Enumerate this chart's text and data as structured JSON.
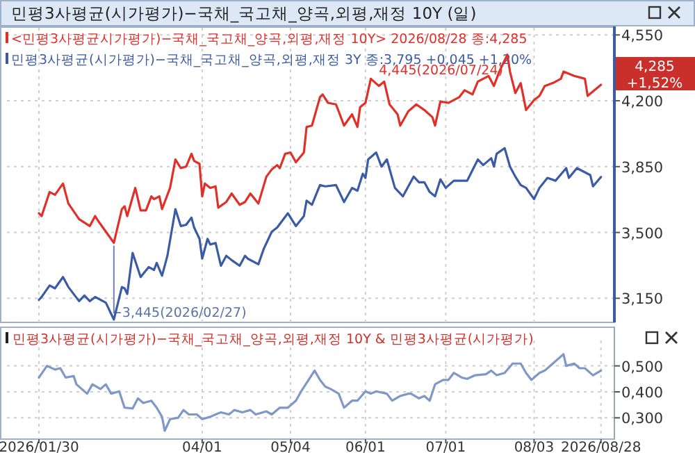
{
  "chart_data": [
    {
      "type": "line",
      "title": "민평3사평균(시가평가)−국채_국고채_양곡,외평,재정 10Y (일)",
      "legend": "top left",
      "grid": true,
      "tick_labels": "y",
      "marker": "none",
      "xlim": [
        "2026-01-30",
        "2026-09-02"
      ],
      "xticks": [
        {
          "value": "2026-01-30",
          "label": null
        },
        {
          "value": "2026-04-01",
          "label": null
        },
        {
          "value": "2026-05-04",
          "label": null
        },
        {
          "value": "2026-06-01",
          "label": null
        },
        {
          "value": "2026-07-01",
          "label": null
        },
        {
          "value": "2026-08-03",
          "label": null
        }
      ],
      "ylim": [
        3.022,
        4.588
      ],
      "yticks": [
        {
          "value": 3.15,
          "label": "3,150"
        },
        {
          "value": 3.5,
          "label": "3,500"
        },
        {
          "value": 3.85,
          "label": "3,850"
        },
        {
          "value": 4.2,
          "label": "4,200"
        },
        {
          "value": 4.55,
          "label": "4,550"
        }
      ],
      "annotations": [
        {
          "text": "3,445(2026/02/27)",
          "x": "2026-02-27",
          "y": 3.445
        },
        {
          "text": "4,445(2026/07/24)",
          "x": "2026-07-24",
          "y": 4.445
        },
        "4,285",
        "+1,52%"
      ],
      "series": [
        {
          "name": "<민평3사평균시가평가)−국채_국고채_양곡,외평,재정 10Y> 2026/08/28 종:4,285",
          "color": "#e0302a",
          "x": [
            "2026-01-30",
            "2026-01-31",
            "2026-02-03",
            "2026-02-05",
            "2026-02-08",
            "2026-02-10",
            "2026-02-14",
            "2026-02-18",
            "2026-02-20",
            "2026-02-21",
            "2026-02-27",
            "2026-03-02",
            "2026-03-03",
            "2026-03-04",
            "2026-03-07",
            "2026-03-09",
            "2026-03-11",
            "2026-03-13",
            "2026-03-14",
            "2026-03-16",
            "2026-03-17",
            "2026-03-20",
            "2026-03-22",
            "2026-03-24",
            "2026-03-26",
            "2026-03-28",
            "2026-03-29",
            "2026-03-31",
            "2026-04-01",
            "2026-04-02",
            "2026-04-04",
            "2026-04-06",
            "2026-04-07",
            "2026-04-10",
            "2026-04-12",
            "2026-04-15",
            "2026-04-17",
            "2026-04-19",
            "2026-04-22",
            "2026-04-25",
            "2026-04-27",
            "2026-04-29",
            "2026-04-30",
            "2026-05-02",
            "2026-05-04",
            "2026-05-06",
            "2026-05-09",
            "2026-05-10",
            "2026-05-12",
            "2026-05-15",
            "2026-05-16",
            "2026-05-18",
            "2026-05-21",
            "2026-05-24",
            "2026-05-27",
            "2026-05-29",
            "2026-05-30",
            "2026-06-01",
            "2026-06-03",
            "2026-06-06",
            "2026-06-08",
            "2026-06-10",
            "2026-06-13",
            "2026-06-14",
            "2026-06-17",
            "2026-06-20",
            "2026-06-23",
            "2026-06-26",
            "2026-06-27",
            "2026-06-29",
            "2026-07-02",
            "2026-07-06",
            "2026-07-08",
            "2026-07-11",
            "2026-07-13",
            "2026-07-17",
            "2026-07-19",
            "2026-07-21",
            "2026-07-24",
            "2026-07-25",
            "2026-07-27",
            "2026-07-29",
            "2026-07-31",
            "2026-08-03",
            "2026-08-05",
            "2026-08-07",
            "2026-08-10",
            "2026-08-13",
            "2026-08-14",
            "2026-08-18",
            "2026-08-22",
            "2026-08-23",
            "2026-08-28"
          ],
          "values": [
            3.602,
            3.587,
            3.715,
            3.7,
            3.76,
            3.654,
            3.571,
            3.534,
            3.587,
            3.564,
            3.445,
            3.624,
            3.639,
            3.587,
            3.737,
            3.617,
            3.617,
            3.692,
            3.677,
            3.692,
            3.624,
            3.737,
            3.888,
            3.842,
            3.85,
            3.918,
            3.88,
            3.865,
            3.692,
            3.76,
            3.737,
            3.745,
            3.632,
            3.662,
            3.707,
            3.647,
            3.662,
            3.707,
            3.654,
            3.797,
            3.835,
            3.858,
            3.842,
            3.918,
            3.925,
            3.873,
            3.925,
            4.061,
            4.068,
            4.219,
            4.234,
            4.189,
            4.181,
            4.068,
            4.128,
            4.061,
            4.166,
            4.189,
            4.317,
            4.279,
            4.302,
            4.181,
            4.128,
            4.068,
            4.144,
            4.181,
            4.151,
            4.113,
            4.068,
            4.196,
            4.189,
            4.219,
            4.256,
            4.234,
            4.302,
            4.332,
            4.279,
            4.355,
            4.445,
            4.355,
            4.241,
            4.294,
            4.151,
            4.204,
            4.226,
            4.279,
            4.294,
            4.317,
            4.355,
            4.332,
            4.317,
            4.226,
            4.285
          ]
        },
        {
          "name": "민평3사평균(시가평가)−국채_국고채_양곡,외평,재정 3Y 종:3,795 +0,045 +1,20%",
          "color": "#3b5ba5",
          "x": [
            "2026-01-30",
            "2026-01-31",
            "2026-02-03",
            "2026-02-05",
            "2026-02-08",
            "2026-02-10",
            "2026-02-14",
            "2026-02-16",
            "2026-02-18",
            "2026-02-20",
            "2026-02-24",
            "2026-02-27",
            "2026-03-02",
            "2026-03-03",
            "2026-03-04",
            "2026-03-06",
            "2026-03-09",
            "2026-03-12",
            "2026-03-14",
            "2026-03-15",
            "2026-03-17",
            "2026-03-19",
            "2026-03-22",
            "2026-03-24",
            "2026-03-26",
            "2026-03-28",
            "2026-03-29",
            "2026-03-31",
            "2026-04-01",
            "2026-04-03",
            "2026-04-04",
            "2026-04-06",
            "2026-04-08",
            "2026-04-10",
            "2026-04-12",
            "2026-04-15",
            "2026-04-17",
            "2026-04-18",
            "2026-04-22",
            "2026-04-24",
            "2026-04-27",
            "2026-04-29",
            "2026-05-01",
            "2026-05-03",
            "2026-05-06",
            "2026-05-09",
            "2026-05-10",
            "2026-05-12",
            "2026-05-15",
            "2026-05-17",
            "2026-05-21",
            "2026-05-24",
            "2026-05-27",
            "2026-05-29",
            "2026-05-31",
            "2026-06-01",
            "2026-06-02",
            "2026-06-05",
            "2026-06-07",
            "2026-06-09",
            "2026-06-12",
            "2026-06-15",
            "2026-06-19",
            "2026-06-21",
            "2026-06-23",
            "2026-06-25",
            "2026-06-27",
            "2026-06-29",
            "2026-07-01",
            "2026-07-04",
            "2026-07-09",
            "2026-07-13",
            "2026-07-15",
            "2026-07-18",
            "2026-07-19",
            "2026-07-20",
            "2026-07-23",
            "2026-07-25",
            "2026-07-27",
            "2026-07-29",
            "2026-07-31",
            "2026-08-03",
            "2026-08-05",
            "2026-08-08",
            "2026-08-11",
            "2026-08-15",
            "2026-08-16",
            "2026-08-19",
            "2026-08-24",
            "2026-08-25",
            "2026-08-28"
          ],
          "values": [
            3.142,
            3.157,
            3.218,
            3.203,
            3.263,
            3.21,
            3.135,
            3.165,
            3.135,
            3.157,
            3.127,
            3.037,
            3.21,
            3.203,
            3.173,
            3.391,
            3.263,
            3.316,
            3.301,
            3.338,
            3.27,
            3.376,
            3.624,
            3.534,
            3.541,
            3.579,
            3.526,
            3.466,
            3.361,
            3.466,
            3.436,
            3.444,
            3.323,
            3.376,
            3.353,
            3.323,
            3.376,
            3.361,
            3.331,
            3.413,
            3.504,
            3.526,
            3.564,
            3.602,
            3.534,
            3.587,
            3.669,
            3.647,
            3.752,
            3.745,
            3.752,
            3.662,
            3.737,
            3.722,
            3.812,
            3.79,
            3.888,
            3.925,
            3.85,
            3.888,
            3.737,
            3.692,
            3.797,
            3.767,
            3.767,
            3.715,
            3.692,
            3.782,
            3.737,
            3.775,
            3.775,
            3.888,
            3.858,
            3.895,
            3.85,
            3.918,
            3.948,
            3.85,
            3.797,
            3.752,
            3.737,
            3.677,
            3.737,
            3.79,
            3.775,
            3.842,
            3.79,
            3.842,
            3.805,
            3.745,
            3.795
          ]
        }
      ]
    },
    {
      "type": "line",
      "title": "민평3사평균(시가평가)−국채_국고채_양곡,외평,재정 10Y & 민평3사평균(시가평가)",
      "grid": true,
      "marker": "none",
      "xlim": [
        "2026-01-30",
        "2026-09-02"
      ],
      "xticks": [
        {
          "value": "2026-01-30",
          "label": "2026/01/30"
        },
        {
          "value": "2026-04-01",
          "label": "04/01"
        },
        {
          "value": "2026-05-04",
          "label": "05/04"
        },
        {
          "value": "2026-06-01",
          "label": "06/01"
        },
        {
          "value": "2026-07-01",
          "label": "07/01"
        },
        {
          "value": "2026-08-03",
          "label": "08/03"
        },
        {
          "value": "2026-08-28",
          "label": "2026/08/28"
        }
      ],
      "ylim": [
        0.218,
        0.598
      ],
      "yticks": [
        {
          "value": 0.3,
          "label": "0,300"
        },
        {
          "value": 0.4,
          "label": "0,400"
        },
        {
          "value": 0.5,
          "label": "0,500"
        }
      ],
      "series": [
        {
          "color": "#7f98c8",
          "x": [
            "2026-01-30",
            "2026-02-02",
            "2026-02-05",
            "2026-02-07",
            "2026-02-09",
            "2026-02-12",
            "2026-02-13",
            "2026-02-17",
            "2026-02-19",
            "2026-02-22",
            "2026-02-24",
            "2026-02-26",
            "2026-03-01",
            "2026-03-03",
            "2026-03-06",
            "2026-03-08",
            "2026-03-10",
            "2026-03-13",
            "2026-03-15",
            "2026-03-17",
            "2026-03-18",
            "2026-03-20",
            "2026-03-23",
            "2026-03-25",
            "2026-03-27",
            "2026-03-30",
            "2026-04-01",
            "2026-04-04",
            "2026-04-06",
            "2026-04-08",
            "2026-04-11",
            "2026-04-13",
            "2026-04-16",
            "2026-04-19",
            "2026-04-21",
            "2026-04-25",
            "2026-04-27",
            "2026-04-30",
            "2026-05-03",
            "2026-05-06",
            "2026-05-08",
            "2026-05-11",
            "2026-05-13",
            "2026-05-15",
            "2026-05-17",
            "2026-05-19",
            "2026-05-22",
            "2026-05-24",
            "2026-05-27",
            "2026-05-29",
            "2026-06-01",
            "2026-06-03",
            "2026-06-05",
            "2026-06-09",
            "2026-06-11",
            "2026-06-14",
            "2026-06-17",
            "2026-06-18",
            "2026-06-21",
            "2026-06-23",
            "2026-06-25",
            "2026-06-27",
            "2026-06-30",
            "2026-07-02",
            "2026-07-04",
            "2026-07-07",
            "2026-07-09",
            "2026-07-12",
            "2026-07-16",
            "2026-07-18",
            "2026-07-20",
            "2026-07-23",
            "2026-07-26",
            "2026-07-29",
            "2026-07-31",
            "2026-08-02",
            "2026-08-05",
            "2026-08-07",
            "2026-08-10",
            "2026-08-11",
            "2026-08-14",
            "2026-08-15",
            "2026-08-18",
            "2026-08-20",
            "2026-08-22",
            "2026-08-25",
            "2026-08-28"
          ],
          "values": [
            0.455,
            0.5,
            0.486,
            0.491,
            0.455,
            0.461,
            0.429,
            0.393,
            0.429,
            0.411,
            0.429,
            0.393,
            0.402,
            0.339,
            0.336,
            0.375,
            0.357,
            0.366,
            0.339,
            0.304,
            0.25,
            0.295,
            0.3,
            0.33,
            0.313,
            0.313,
            0.295,
            0.304,
            0.313,
            0.321,
            0.313,
            0.33,
            0.321,
            0.33,
            0.313,
            0.325,
            0.313,
            0.339,
            0.339,
            0.366,
            0.402,
            0.45,
            0.482,
            0.446,
            0.42,
            0.411,
            0.393,
            0.339,
            0.366,
            0.366,
            0.402,
            0.393,
            0.402,
            0.393,
            0.366,
            0.384,
            0.393,
            0.393,
            0.375,
            0.384,
            0.366,
            0.429,
            0.446,
            0.446,
            0.473,
            0.455,
            0.45,
            0.464,
            0.468,
            0.482,
            0.464,
            0.473,
            0.509,
            0.509,
            0.473,
            0.446,
            0.473,
            0.482,
            0.509,
            0.518,
            0.545,
            0.5,
            0.509,
            0.491,
            0.491,
            0.464,
            0.482
          ]
        }
      ]
    }
  ]
}
